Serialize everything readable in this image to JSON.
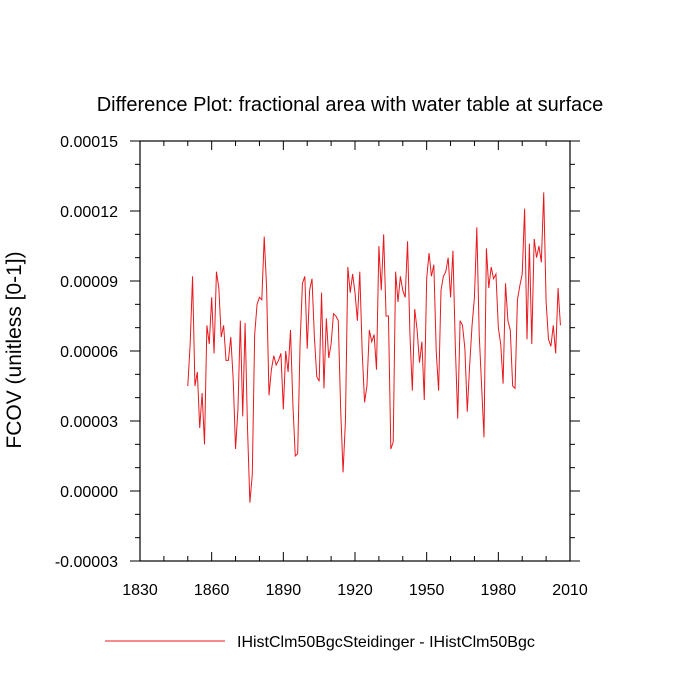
{
  "chart_data": {
    "type": "line",
    "title": "Difference Plot: fractional area with water table at surface",
    "xlabel": "",
    "ylabel": "FCOV  (unitless [0-1])",
    "xlim": [
      1830,
      2010
    ],
    "ylim": [
      -3e-05,
      0.00015
    ],
    "x_ticks": [
      1830,
      1860,
      1890,
      1920,
      1950,
      1980,
      2010
    ],
    "x_tick_labels": [
      "1830",
      "1860",
      "1890",
      "1920",
      "1950",
      "1980",
      "2010"
    ],
    "y_ticks": [
      -3e-05,
      0,
      3e-05,
      6e-05,
      9e-05,
      0.00012,
      0.00015
    ],
    "y_tick_labels": [
      "-0.00003",
      "0.00000",
      "0.00003",
      "0.00006",
      "0.00009",
      "0.00012",
      "0.00015"
    ],
    "grid": false,
    "legend_position": "bottom",
    "series": [
      {
        "name": "IHistClm50BgcSteidinger - IHistClm50Bgc",
        "color": "#e8191e",
        "x_start": 1850,
        "x_step": 1,
        "values": [
          4.5e-05,
          6.3e-05,
          9.2e-05,
          4.5e-05,
          5.1e-05,
          2.7e-05,
          4.2e-05,
          2e-05,
          7.1e-05,
          6.3e-05,
          8.3e-05,
          5.9e-05,
          9.4e-05,
          8.7e-05,
          6.6e-05,
          7.1e-05,
          5.6e-05,
          5.6e-05,
          6.6e-05,
          4.8e-05,
          1.8e-05,
          3.5e-05,
          7.3e-05,
          3.2e-05,
          7.2e-05,
          2.7e-05,
          -5e-06,
          7e-06,
          6.7e-05,
          8e-05,
          8.3e-05,
          8.2e-05,
          0.000109,
          8.7e-05,
          4.1e-05,
          5.2e-05,
          5.8e-05,
          5.4e-05,
          5.6e-05,
          5.9e-05,
          3.5e-05,
          6e-05,
          5.1e-05,
          6.9e-05,
          3.7e-05,
          1.5e-05,
          1.6e-05,
          6.3e-05,
          8.9e-05,
          9.2e-05,
          6.1e-05,
          8.6e-05,
          9.1e-05,
          6.6e-05,
          4.9e-05,
          4.7e-05,
          8.5e-05,
          4.4e-05,
          7.4e-05,
          5.7e-05,
          6.3e-05,
          7.6e-05,
          7.5e-05,
          7.3e-05,
          3.5e-05,
          8e-06,
          3e-05,
          9.6e-05,
          8.5e-05,
          9.3e-05,
          8.5e-05,
          7.3e-05,
          9.4e-05,
          6e-05,
          3.8e-05,
          4.5e-05,
          6.9e-05,
          6.4e-05,
          6.7e-05,
          5.2e-05,
          0.000105,
          8.6e-05,
          0.00011,
          7.5e-05,
          7.5e-05,
          1.8e-05,
          2.1e-05,
          9.4e-05,
          8.1e-05,
          9.2e-05,
          8.6e-05,
          8.3e-05,
          0.000107,
          6.7e-05,
          4.3e-05,
          7.8e-05,
          6.9e-05,
          5.5e-05,
          6.4e-05,
          3.9e-05,
          9.1e-05,
          0.000102,
          9.2e-05,
          9.7e-05,
          6e-05,
          4.3e-05,
          8.6e-05,
          9.2e-05,
          9.4e-05,
          0.0001,
          8.3e-05,
          0.000103,
          6.2e-05,
          3.1e-05,
          7.3e-05,
          7.1e-05,
          6.1e-05,
          3.4e-05,
          5.4e-05,
          7.1e-05,
          8.3e-05,
          0.000113,
          6.7e-05,
          4.5e-05,
          2.3e-05,
          0.000104,
          8.7e-05,
          9.6e-05,
          9.1e-05,
          9.3e-05,
          7e-05,
          6.3e-05,
          4.6e-05,
          8.9e-05,
          7.3e-05,
          6.9e-05,
          4.5e-05,
          4.4e-05,
          8.2e-05,
          8.8e-05,
          9.3e-05,
          0.000121,
          6.5e-05,
          0.000106,
          6.3e-05,
          0.000108,
          0.0001,
          0.000105,
          9.8e-05,
          0.000128,
          8.1e-05,
          6.5e-05,
          6.2e-05,
          7.1e-05,
          5.9e-05,
          8.7e-05,
          7.1e-05
        ]
      }
    ]
  }
}
